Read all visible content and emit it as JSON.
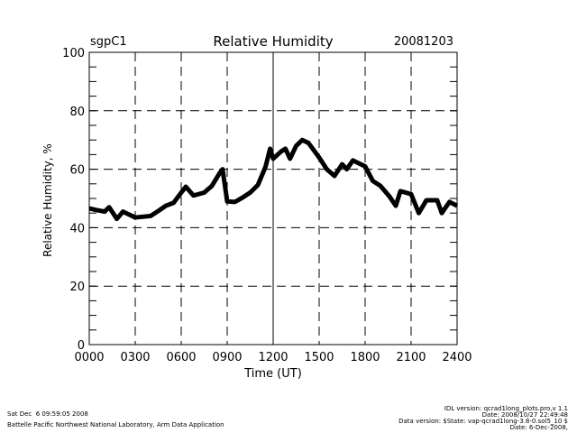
{
  "chart_data": {
    "type": "line",
    "title": "Relative Humidity",
    "site": "sgpC1",
    "date": "20081203",
    "xlabel": "Time (UT)",
    "ylabel": "Relative Humidity, %",
    "xlim": [
      0,
      24
    ],
    "ylim": [
      0,
      100
    ],
    "x_tick_labels": [
      "0000",
      "0300",
      "0600",
      "0900",
      "1200",
      "1500",
      "1800",
      "2100",
      "2400"
    ],
    "y_tick_labels": [
      "0",
      "20",
      "40",
      "60",
      "80",
      "100"
    ],
    "grid": "dashed",
    "series": [
      {
        "name": "Relative Humidity",
        "color": "#000000",
        "x": [
          0,
          0.5,
          1,
          1.3,
          1.8,
          2.2,
          3,
          4,
          4.5,
          5,
          5.5,
          6,
          6.3,
          6.8,
          7.5,
          8,
          8.5,
          8.7,
          9,
          9.5,
          10,
          10.5,
          11,
          11.5,
          11.8,
          12,
          12.5,
          12.8,
          13.1,
          13.5,
          13.9,
          14.3,
          15,
          15.5,
          16,
          16.5,
          16.8,
          17.2,
          18,
          18.5,
          19,
          19.6,
          20,
          20.3,
          21,
          21.5,
          22,
          22.7,
          23,
          23.5,
          24
        ],
        "y": [
          46.6,
          46,
          45.5,
          47,
          43,
          45.5,
          43.5,
          44,
          45.7,
          47.5,
          48.5,
          52,
          54,
          51,
          52,
          54.3,
          58.6,
          60,
          49,
          48.8,
          50.3,
          52,
          54.6,
          60.8,
          67,
          63.6,
          66,
          67,
          63.6,
          68,
          70,
          69,
          64,
          60,
          57.7,
          61.7,
          60,
          63,
          61,
          56,
          54.3,
          50.6,
          47.5,
          52.5,
          51.5,
          45,
          49.4,
          49.4,
          45,
          48.8,
          47.5
        ]
      }
    ]
  },
  "footer": {
    "left_line1": "Sat Dec  6 09:59:05 2008",
    "left_line2": "Battelle Pacific Northwest National Laboratory, Arm Data Application",
    "right_line1": "IDL version: qcrad1long_plots.pro,v 1.1",
    "right_line2": "Date: 2008/10/27 22:49:48",
    "right_line3": "Data version: $State: vap-qcrad1long-3.8-0.sol5_10 $",
    "right_line4": "Date: 6-Dec-2008,"
  }
}
